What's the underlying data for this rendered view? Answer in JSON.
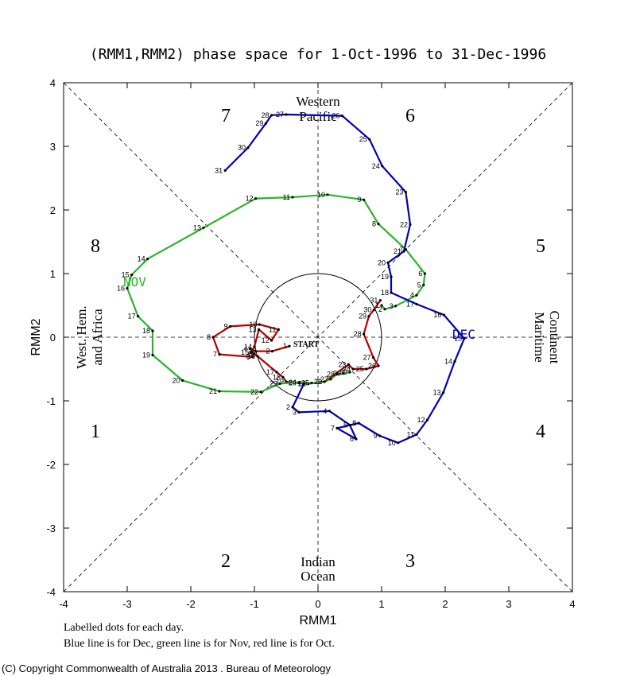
{
  "chart_data": {
    "type": "line",
    "title": "(RMM1,RMM2) phase space for  1-Oct-1996 to 31-Dec-1996",
    "xlabel": "RMM1",
    "ylabel": "RMM2",
    "xlim": [
      -4,
      4
    ],
    "ylim": [
      -4,
      4
    ],
    "ticks": [
      "-4",
      "-3",
      "-2",
      "-1",
      "0",
      "1",
      "2",
      "3",
      "4"
    ],
    "phases": [
      "1",
      "2",
      "3",
      "4",
      "5",
      "6",
      "7",
      "8"
    ],
    "regions": {
      "top": [
        "Western",
        "Pacific"
      ],
      "bottom": [
        "Indian",
        "Ocean"
      ],
      "left": [
        "West. Hem.",
        "and Africa"
      ],
      "right": [
        "Maritime",
        "Continent"
      ]
    },
    "start_label": "START",
    "series": [
      {
        "name": "OCT",
        "color": "#b40000",
        "labels": [
          "1",
          "2",
          "3",
          "4",
          "5",
          "6",
          "7",
          "8",
          "9",
          "10",
          "11",
          "12",
          "13",
          "14",
          "15",
          "16",
          "17",
          "18",
          "19",
          "20",
          "21",
          "22",
          "23",
          "24",
          "25",
          "26",
          "27",
          "28",
          "29",
          "30",
          "31"
        ],
        "points": [
          [
            -0.45,
            -0.14
          ],
          [
            -0.72,
            -0.22
          ],
          [
            -0.98,
            -0.22
          ],
          [
            -1.07,
            -0.18
          ],
          [
            -1.0,
            -0.26
          ],
          [
            -1.03,
            -0.31
          ],
          [
            -1.55,
            -0.27
          ],
          [
            -1.65,
            0.0
          ],
          [
            -1.38,
            0.17
          ],
          [
            -0.92,
            0.2
          ],
          [
            -0.62,
            0.12
          ],
          [
            -0.73,
            -0.05
          ],
          [
            -0.93,
            0.12
          ],
          [
            -1.0,
            -0.15
          ],
          [
            -1.05,
            -0.24
          ],
          [
            -0.95,
            -0.3
          ],
          [
            -0.65,
            -0.55
          ],
          [
            -0.55,
            -0.63
          ],
          [
            -0.5,
            -0.7
          ],
          [
            -0.3,
            -0.72
          ],
          [
            -0.15,
            -0.73
          ],
          [
            0.1,
            -0.7
          ],
          [
            0.48,
            -0.43
          ],
          [
            0.55,
            -0.5
          ],
          [
            0.76,
            -0.5
          ],
          [
            0.95,
            -0.45
          ],
          [
            0.87,
            -0.32
          ],
          [
            0.72,
            0.05
          ],
          [
            0.8,
            0.33
          ],
          [
            0.88,
            0.43
          ],
          [
            0.98,
            0.58
          ]
        ]
      },
      {
        "name": "NOV",
        "color": "#28b428",
        "labels": [
          "1",
          "2",
          "3",
          "4",
          "5",
          "6",
          "7",
          "8",
          "9",
          "10",
          "11",
          "12",
          "13",
          "14",
          "15",
          "16",
          "17",
          "18",
          "19",
          "20",
          "21",
          "22",
          "23",
          "24",
          "25",
          "26",
          "27",
          "28",
          "29",
          "30"
        ],
        "points": [
          [
            1.0,
            0.5
          ],
          [
            1.05,
            0.44
          ],
          [
            1.22,
            0.49
          ],
          [
            1.55,
            0.66
          ],
          [
            1.66,
            0.82
          ],
          [
            1.68,
            1.0
          ],
          [
            1.38,
            1.38
          ],
          [
            0.95,
            1.78
          ],
          [
            0.72,
            2.16
          ],
          [
            0.15,
            2.24
          ],
          [
            -0.4,
            2.2
          ],
          [
            -0.98,
            2.18
          ],
          [
            -1.8,
            1.72
          ],
          [
            -2.68,
            1.23
          ],
          [
            -2.93,
            0.98
          ],
          [
            -3.0,
            0.77
          ],
          [
            -2.83,
            0.33
          ],
          [
            -2.6,
            0.1
          ],
          [
            -2.6,
            -0.28
          ],
          [
            -2.13,
            -0.68
          ],
          [
            -1.55,
            -0.85
          ],
          [
            -0.9,
            -0.86
          ],
          [
            -0.6,
            -0.73
          ],
          [
            -0.3,
            -0.71
          ],
          [
            -0.1,
            -0.72
          ],
          [
            0.1,
            -0.7
          ],
          [
            0.2,
            -0.66
          ],
          [
            0.3,
            -0.58
          ],
          [
            0.4,
            -0.57
          ],
          [
            0.5,
            -0.55
          ]
        ]
      },
      {
        "name": "DEC",
        "color": "#0000b4",
        "labels": [
          "1",
          "2",
          "3",
          "4",
          "5",
          "6",
          "7",
          "8",
          "9",
          "10",
          "11",
          "12",
          "13",
          "14",
          "15",
          "16",
          "17",
          "18",
          "19",
          "20",
          "21",
          "22",
          "23",
          "24",
          "25",
          "26",
          "27",
          "28",
          "29",
          "30",
          "31"
        ],
        "points": [
          [
            -0.22,
            -0.73
          ],
          [
            -0.4,
            -1.1
          ],
          [
            -0.3,
            -1.18
          ],
          [
            0.18,
            -1.16
          ],
          [
            0.5,
            -1.38
          ],
          [
            0.6,
            -1.6
          ],
          [
            0.3,
            -1.43
          ],
          [
            0.64,
            -1.35
          ],
          [
            0.97,
            -1.55
          ],
          [
            1.26,
            -1.66
          ],
          [
            1.55,
            -1.53
          ],
          [
            1.72,
            -1.3
          ],
          [
            1.97,
            -0.87
          ],
          [
            2.15,
            -0.38
          ],
          [
            2.3,
            -0.02
          ],
          [
            1.98,
            0.35
          ],
          [
            1.55,
            0.52
          ],
          [
            1.15,
            0.7
          ],
          [
            1.15,
            0.95
          ],
          [
            1.1,
            1.17
          ],
          [
            1.35,
            1.35
          ],
          [
            1.45,
            1.77
          ],
          [
            1.38,
            2.28
          ],
          [
            1.01,
            2.69
          ],
          [
            0.81,
            3.11
          ],
          [
            0.38,
            3.48
          ],
          [
            -0.5,
            3.5
          ],
          [
            -0.73,
            3.49
          ],
          [
            -0.82,
            3.36
          ],
          [
            -1.1,
            2.98
          ],
          [
            -1.46,
            2.62
          ]
        ]
      }
    ]
  },
  "month_labels": {
    "nov": "NOV",
    "dec": "DEC"
  },
  "footnotes": {
    "line1": "Labelled dots for each day.",
    "line2": "Blue line is for Dec, green line is for Nov, red line is for Oct."
  },
  "copyright": "(C) Copyright Commonwealth of Australia 2013 . Bureau of Meteorology"
}
